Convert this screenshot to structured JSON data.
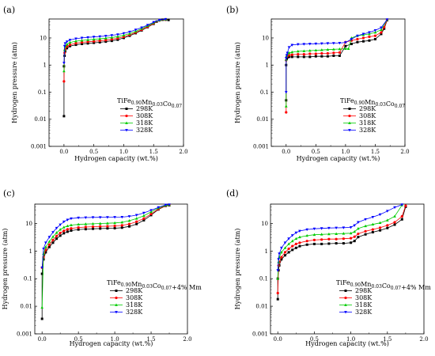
{
  "chart_data": [
    {
      "panel": "(a)",
      "type": "scatter",
      "xlabel": "Hydrogen capacity (wt.%)",
      "ylabel": "Hydrogen pressure (atm)",
      "xlim": [
        -0.25,
        2.0
      ],
      "ylim": [
        0.001,
        50
      ],
      "yscale": "log",
      "xticks": [
        "0.0",
        "0.5",
        "1.0",
        "1.5",
        "2.0"
      ],
      "yticks": [
        "0.001",
        "0.01",
        "0.1",
        "1",
        "10"
      ],
      "legend_title": "TiFe0.90Mn0.03Co0.07",
      "legend_position": "center-right",
      "series": [
        {
          "name": "298K",
          "color": "#000000",
          "x": [
            0.0,
            0.0,
            0.01,
            0.02,
            0.05,
            0.1,
            0.2,
            0.3,
            0.4,
            0.5,
            0.6,
            0.7,
            0.8,
            0.9,
            1.0,
            1.1,
            1.2,
            1.3,
            1.4,
            1.5,
            1.55,
            1.6,
            1.65,
            1.7,
            1.75
          ],
          "y": [
            0.013,
            0.9,
            2.2,
            3.2,
            4.2,
            5.0,
            5.6,
            6.0,
            6.3,
            6.6,
            6.9,
            7.3,
            7.8,
            8.6,
            10,
            12,
            15,
            19,
            25,
            33,
            40,
            45,
            47,
            47,
            46
          ]
        },
        {
          "name": "308K",
          "color": "#ff0000",
          "x": [
            0.0,
            0.01,
            0.02,
            0.05,
            0.1,
            0.2,
            0.3,
            0.4,
            0.5,
            0.6,
            0.7,
            0.8,
            0.9,
            1.0,
            1.1,
            1.2,
            1.3,
            1.4,
            1.5,
            1.6,
            1.7
          ],
          "y": [
            0.25,
            2.8,
            3.8,
            4.8,
            5.6,
            6.4,
            6.9,
            7.2,
            7.5,
            7.9,
            8.3,
            8.9,
            9.7,
            11,
            13,
            16,
            20,
            26,
            34,
            44,
            47
          ]
        },
        {
          "name": "318K",
          "color": "#00cc00",
          "x": [
            0.0,
            0.01,
            0.02,
            0.05,
            0.1,
            0.2,
            0.3,
            0.4,
            0.5,
            0.6,
            0.7,
            0.8,
            0.9,
            1.0,
            1.1,
            1.2,
            1.3,
            1.4,
            1.5,
            1.6,
            1.7
          ],
          "y": [
            0.6,
            3.6,
            4.8,
            5.8,
            6.8,
            7.6,
            8.1,
            8.5,
            8.9,
            9.3,
            9.8,
            10.4,
            11.2,
            12.6,
            14.5,
            17.5,
            22,
            28,
            36,
            45,
            48
          ]
        },
        {
          "name": "328K",
          "color": "#0000ff",
          "x": [
            0.0,
            0.01,
            0.02,
            0.05,
            0.1,
            0.2,
            0.3,
            0.4,
            0.5,
            0.6,
            0.7,
            0.8,
            0.9,
            1.0,
            1.1,
            1.2,
            1.3,
            1.4,
            1.5,
            1.6,
            1.7
          ],
          "y": [
            1.2,
            5.0,
            6.3,
            7.3,
            8.4,
            9.4,
            10.0,
            10.5,
            10.9,
            11.3,
            11.8,
            12.5,
            13.4,
            14.8,
            16.8,
            20,
            24,
            30,
            38,
            46,
            49
          ]
        }
      ]
    },
    {
      "panel": "(b)",
      "type": "scatter",
      "xlabel": "Hydrogen capacity (wt.%)",
      "ylabel": "Hydrogen pressure (atm)",
      "xlim": [
        -0.25,
        2.0
      ],
      "ylim": [
        0.001,
        50
      ],
      "yscale": "log",
      "xticks": [
        "0.0",
        "0.5",
        "1.0",
        "1.5",
        "2.0"
      ],
      "yticks": [
        "0.001",
        "0.01",
        "0.1",
        "1",
        "10"
      ],
      "legend_title": "TiFe0.90Mn0.03Co0.07",
      "legend_position": "center-right",
      "series": [
        {
          "name": "298K",
          "color": "#000000",
          "x": [
            0.0,
            0.0,
            0.01,
            0.02,
            0.05,
            0.1,
            0.2,
            0.3,
            0.4,
            0.5,
            0.6,
            0.7,
            0.8,
            0.9,
            1.0,
            1.1,
            1.2,
            1.3,
            1.4,
            1.5,
            1.6,
            1.65,
            1.7
          ],
          "y": [
            0.05,
            1.0,
            1.7,
            1.9,
            2.0,
            2.0,
            2.0,
            2.0,
            2.0,
            2.1,
            2.1,
            2.1,
            2.2,
            2.2,
            5.0,
            6.0,
            7.0,
            7.5,
            8.0,
            9.0,
            14,
            22,
            45
          ]
        },
        {
          "name": "308K",
          "color": "#ff0000",
          "x": [
            0.0,
            0.0,
            0.01,
            0.02,
            0.05,
            0.1,
            0.2,
            0.3,
            0.4,
            0.5,
            0.6,
            0.7,
            0.8,
            0.9,
            1.0,
            1.1,
            1.2,
            1.3,
            1.4,
            1.5,
            1.6,
            1.65,
            1.7
          ],
          "y": [
            0.018,
            1.5,
            2.0,
            2.2,
            2.3,
            2.4,
            2.5,
            2.5,
            2.6,
            2.6,
            2.7,
            2.7,
            2.8,
            2.9,
            7.0,
            8.0,
            9.0,
            10,
            11,
            12,
            16,
            25,
            46
          ]
        },
        {
          "name": "318K",
          "color": "#00cc00",
          "x": [
            0.0,
            0.0,
            0.01,
            0.02,
            0.05,
            0.1,
            0.2,
            0.3,
            0.4,
            0.5,
            0.6,
            0.7,
            0.8,
            0.9,
            1.0,
            1.05,
            1.1,
            1.2,
            1.3,
            1.4,
            1.5,
            1.6,
            1.7
          ],
          "y": [
            0.03,
            1.6,
            2.2,
            2.5,
            2.8,
            3.0,
            3.2,
            3.3,
            3.4,
            3.5,
            3.6,
            3.7,
            3.8,
            3.9,
            4.0,
            4.0,
            10,
            12,
            13,
            14,
            16,
            20,
            47
          ]
        },
        {
          "name": "328K",
          "color": "#0000ff",
          "x": [
            0.0,
            0.0,
            0.01,
            0.02,
            0.05,
            0.1,
            0.2,
            0.3,
            0.4,
            0.5,
            0.6,
            0.7,
            0.8,
            0.9,
            1.0,
            1.1,
            1.2,
            1.3,
            1.4,
            1.5,
            1.6,
            1.7
          ],
          "y": [
            0.1,
            1.8,
            2.3,
            2.8,
            4.5,
            5.5,
            5.8,
            5.9,
            6.0,
            6.1,
            6.2,
            6.3,
            6.4,
            6.5,
            6.8,
            9.0,
            12,
            14,
            16,
            19,
            24,
            48
          ]
        }
      ]
    },
    {
      "panel": "(c)",
      "type": "scatter",
      "xlabel": "Hydrogen capacity (wt.%)",
      "ylabel": "Hydrogen pressure (atm)",
      "xlim": [
        -0.1,
        2.0
      ],
      "ylim": [
        0.001,
        50
      ],
      "yscale": "log",
      "xticks": [
        "0.0",
        "0.5",
        "1.0",
        "1.5",
        "2.0"
      ],
      "yticks": [
        "0.001",
        "0.01",
        "0.1",
        "1",
        "10"
      ],
      "legend_title": "TiFe0.90Mn0.03Co0.07+4% Mm",
      "legend_position": "center",
      "series": [
        {
          "name": "298K",
          "color": "#000000",
          "x": [
            0.0,
            0.0,
            0.02,
            0.05,
            0.1,
            0.15,
            0.2,
            0.25,
            0.3,
            0.35,
            0.4,
            0.5,
            0.6,
            0.7,
            0.8,
            0.9,
            1.0,
            1.1,
            1.2,
            1.3,
            1.4,
            1.5,
            1.6,
            1.7,
            1.75
          ],
          "y": [
            0.0035,
            0.15,
            0.5,
            0.9,
            1.4,
            2.0,
            2.8,
            3.6,
            4.4,
            5.0,
            5.5,
            6.0,
            6.2,
            6.4,
            6.5,
            6.6,
            6.7,
            7.0,
            7.8,
            9.5,
            13,
            20,
            32,
            43,
            45
          ]
        },
        {
          "name": "308K",
          "color": "#ff0000",
          "x": [
            0.0,
            0.02,
            0.05,
            0.1,
            0.15,
            0.2,
            0.25,
            0.3,
            0.35,
            0.4,
            0.5,
            0.6,
            0.7,
            0.8,
            0.9,
            1.0,
            1.1,
            1.2,
            1.3,
            1.4,
            1.5,
            1.6,
            1.7,
            1.75
          ],
          "y": [
            0.25,
            0.6,
            1.1,
            1.7,
            2.5,
            3.5,
            4.5,
            5.4,
            6.1,
            6.6,
            7.1,
            7.4,
            7.6,
            7.8,
            7.9,
            8.1,
            8.5,
            9.5,
            11.5,
            15,
            22,
            33,
            44,
            46
          ]
        },
        {
          "name": "318K",
          "color": "#00cc00",
          "x": [
            0.0,
            0.02,
            0.05,
            0.1,
            0.15,
            0.2,
            0.25,
            0.3,
            0.35,
            0.4,
            0.5,
            0.6,
            0.7,
            0.8,
            0.9,
            1.0,
            1.1,
            1.2,
            1.3,
            1.4,
            1.5,
            1.6,
            1.7,
            1.75
          ],
          "y": [
            0.009,
            0.8,
            1.4,
            2.2,
            3.3,
            4.6,
            6.0,
            7.2,
            8.1,
            8.7,
            9.2,
            9.5,
            9.7,
            9.9,
            10.1,
            10.4,
            11,
            12.5,
            15,
            19,
            26,
            36,
            45,
            47
          ]
        },
        {
          "name": "328K",
          "color": "#0000ff",
          "x": [
            0.0,
            0.02,
            0.05,
            0.1,
            0.15,
            0.2,
            0.25,
            0.3,
            0.35,
            0.4,
            0.5,
            0.6,
            0.7,
            0.8,
            0.9,
            1.0,
            1.1,
            1.2,
            1.3,
            1.4,
            1.5,
            1.6,
            1.7,
            1.75
          ],
          "y": [
            0.25,
            1.2,
            2.0,
            3.2,
            4.8,
            6.8,
            9.0,
            11.5,
            13.5,
            15,
            16,
            16.3,
            16.5,
            16.6,
            16.7,
            16.8,
            17,
            18,
            20,
            24,
            30,
            38,
            47,
            48
          ]
        }
      ]
    },
    {
      "panel": "(d)",
      "type": "scatter",
      "xlabel": "Hydrogen capacity (wt.%)",
      "ylabel": "Hydrogen pressure (atm)",
      "xlim": [
        -0.1,
        2.0
      ],
      "ylim": [
        0.001,
        50
      ],
      "yscale": "log",
      "xticks": [
        "0.0",
        "0.5",
        "1.0",
        "1.5",
        "2.0"
      ],
      "yticks": [
        "0.001",
        "0.01",
        "0.1",
        "1",
        "10"
      ],
      "legend_title": "TiFe0.90Mn0.03Co0.07+4% Mm",
      "legend_position": "center-right",
      "series": [
        {
          "name": "298K",
          "color": "#000000",
          "x": [
            0.0,
            0.0,
            0.01,
            0.02,
            0.05,
            0.1,
            0.15,
            0.2,
            0.25,
            0.3,
            0.4,
            0.5,
            0.6,
            0.7,
            0.8,
            0.9,
            1.0,
            1.05,
            1.1,
            1.2,
            1.3,
            1.4,
            1.5,
            1.6,
            1.7,
            1.75
          ],
          "y": [
            0.018,
            0.1,
            0.2,
            0.3,
            0.5,
            0.7,
            0.9,
            1.1,
            1.3,
            1.5,
            1.7,
            1.8,
            1.8,
            1.85,
            1.9,
            1.9,
            2.0,
            2.3,
            3.2,
            4.0,
            4.8,
            5.6,
            6.8,
            9.0,
            14,
            40
          ]
        },
        {
          "name": "308K",
          "color": "#ff0000",
          "x": [
            0.0,
            0.01,
            0.02,
            0.05,
            0.1,
            0.15,
            0.2,
            0.25,
            0.3,
            0.4,
            0.5,
            0.6,
            0.7,
            0.8,
            0.9,
            1.0,
            1.05,
            1.1,
            1.2,
            1.3,
            1.4,
            1.5,
            1.6,
            1.7,
            1.75
          ],
          "y": [
            0.03,
            0.3,
            0.4,
            0.6,
            0.9,
            1.2,
            1.5,
            1.8,
            2.0,
            2.3,
            2.5,
            2.6,
            2.7,
            2.7,
            2.8,
            2.9,
            3.3,
            4.2,
            5.2,
            6.0,
            7.0,
            8.5,
            11,
            18,
            44
          ]
        },
        {
          "name": "318K",
          "color": "#00cc00",
          "x": [
            0.0,
            0.01,
            0.02,
            0.05,
            0.1,
            0.15,
            0.2,
            0.25,
            0.3,
            0.4,
            0.5,
            0.6,
            0.7,
            0.8,
            0.9,
            1.0,
            1.05,
            1.1,
            1.2,
            1.3,
            1.4,
            1.5,
            1.6,
            1.7
          ],
          "y": [
            0.1,
            0.4,
            0.6,
            0.9,
            1.3,
            1.8,
            2.3,
            2.8,
            3.2,
            3.6,
            3.9,
            4.0,
            4.1,
            4.2,
            4.3,
            4.4,
            5.0,
            6.5,
            8.0,
            9.2,
            10.5,
            13,
            18,
            46
          ]
        },
        {
          "name": "328K",
          "color": "#0000ff",
          "x": [
            0.0,
            0.01,
            0.02,
            0.05,
            0.1,
            0.15,
            0.2,
            0.25,
            0.3,
            0.4,
            0.5,
            0.6,
            0.7,
            0.8,
            0.9,
            1.0,
            1.05,
            1.1,
            1.2,
            1.3,
            1.4,
            1.5,
            1.6,
            1.7
          ],
          "y": [
            0.2,
            0.5,
            0.8,
            1.3,
            2.0,
            2.8,
            3.7,
            4.6,
            5.3,
            6.0,
            6.4,
            6.6,
            6.8,
            6.9,
            7.0,
            7.2,
            8.5,
            11,
            14,
            17,
            21,
            28,
            38,
            48
          ]
        }
      ]
    }
  ]
}
